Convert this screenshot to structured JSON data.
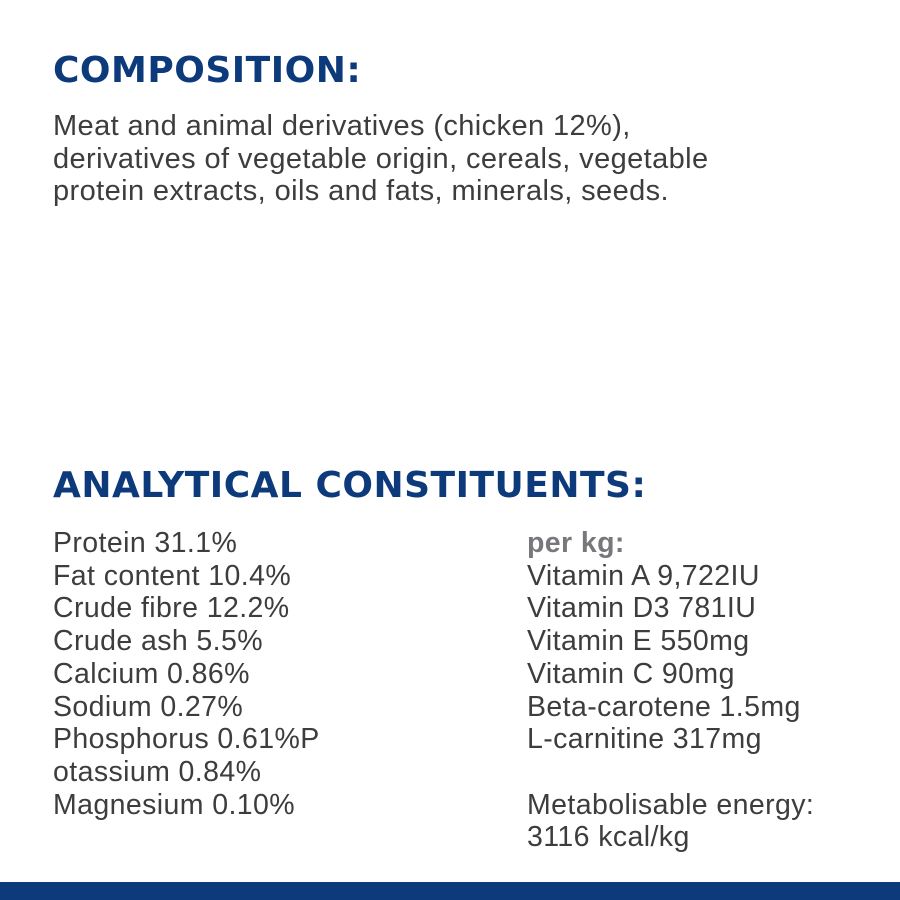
{
  "composition": {
    "heading": "COMPOSITION:",
    "lines": [
      "Meat and animal derivatives (chicken 12%),",
      "derivatives of vegetable origin, cereals, vegetable",
      "protein extracts, oils and fats, minerals, seeds."
    ]
  },
  "analytical": {
    "heading": "ANALYTICAL CONSTITUENTS:",
    "left": [
      "Protein 31.1%",
      "Fat content 10.4%",
      "Crude fibre 12.2%",
      "Crude ash 5.5%",
      "Calcium 0.86%",
      "Sodium 0.27%",
      "Phosphorus 0.61%P",
      "otassium 0.84%",
      "Magnesium 0.10%"
    ],
    "per_kg_label": "per kg:",
    "right": [
      "Vitamin A 9,722IU",
      "Vitamin D3 781IU",
      "Vitamin E 550mg",
      "Vitamin C 90mg",
      "Beta-carotene 1.5mg",
      "L-carnitine 317mg"
    ],
    "energy_label": "Metabolisable energy:",
    "energy_value": "3116 kcal/kg"
  },
  "colors": {
    "heading": "#0c3a7b",
    "text": "#3d3d3f",
    "per_kg": "#77787b",
    "footer_bar": "#0c3a7b"
  }
}
